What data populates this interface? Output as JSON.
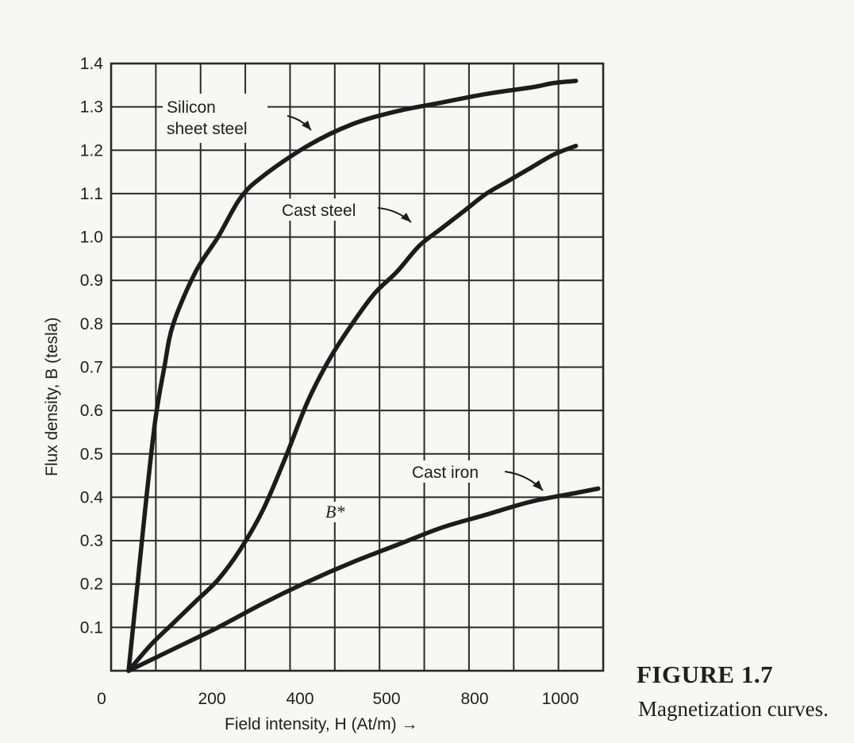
{
  "figure": {
    "title": "FIGURE 1.7",
    "caption": "Magnetization curves."
  },
  "chart_data": {
    "type": "line",
    "xlabel": "Field intensity, H (At/m) →",
    "ylabel": "Flux density, B (tesla)",
    "x_tick_labels": [
      "0",
      "200",
      "400",
      "500",
      "800",
      "1000"
    ],
    "y_tick_labels": [
      "0.1",
      "0.2",
      "0.3",
      "0.4",
      "0.5",
      "0.6",
      "0.7",
      "0.8",
      "0.9",
      "1.0",
      "1.1",
      "1.2",
      "1.3",
      "1.4"
    ],
    "xlim": [
      0,
      1100
    ],
    "ylim": [
      0,
      1.4
    ],
    "grid": true,
    "annotation": "B*",
    "series": [
      {
        "name": "Silicon sheet steel",
        "label_lines": [
          "Silicon",
          "sheet steel"
        ],
        "x": [
          0,
          20,
          40,
          60,
          80,
          100,
          150,
          200,
          250,
          300,
          400,
          500,
          600,
          700,
          800,
          900,
          950,
          1000
        ],
        "y": [
          0,
          0.2,
          0.4,
          0.58,
          0.7,
          0.8,
          0.92,
          1.0,
          1.09,
          1.14,
          1.21,
          1.26,
          1.29,
          1.31,
          1.33,
          1.345,
          1.355,
          1.36
        ]
      },
      {
        "name": "Cast steel",
        "label_lines": [
          "Cast steel"
        ],
        "x": [
          0,
          50,
          100,
          150,
          200,
          250,
          300,
          350,
          400,
          450,
          500,
          550,
          600,
          650,
          700,
          750,
          800,
          850,
          900,
          950,
          1000
        ],
        "y": [
          0,
          0.06,
          0.11,
          0.16,
          0.21,
          0.28,
          0.37,
          0.49,
          0.62,
          0.72,
          0.8,
          0.87,
          0.92,
          0.98,
          1.02,
          1.06,
          1.1,
          1.13,
          1.16,
          1.19,
          1.21
        ]
      },
      {
        "name": "Cast iron",
        "label_lines": [
          "Cast iron"
        ],
        "x": [
          0,
          100,
          200,
          300,
          400,
          500,
          600,
          700,
          800,
          900,
          1000,
          1050
        ],
        "y": [
          0,
          0.05,
          0.1,
          0.155,
          0.205,
          0.25,
          0.29,
          0.33,
          0.36,
          0.39,
          0.41,
          0.42
        ]
      }
    ]
  }
}
